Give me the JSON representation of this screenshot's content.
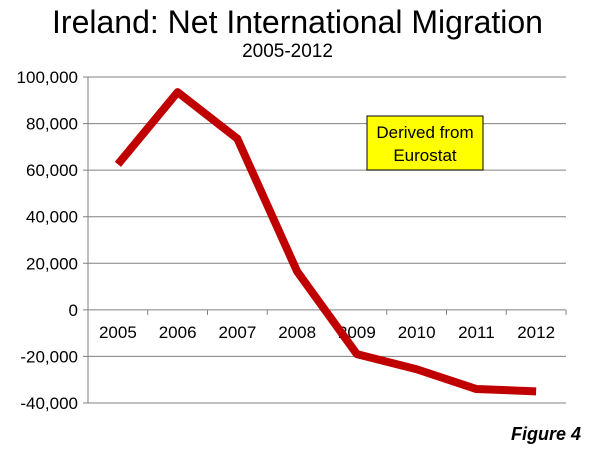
{
  "title": "Ireland: Net International Migration",
  "subtitle": "2005-2012",
  "figure_label": "Figure 4",
  "annotation": {
    "lines": [
      "Derived from",
      "Eurostat"
    ],
    "background": "#ffff00"
  },
  "colors": {
    "series": "#c00000",
    "grid": "#808080"
  },
  "chart_data": {
    "type": "line",
    "title": "Ireland: Net International Migration",
    "subtitle": "2005-2012",
    "categories": [
      "2005",
      "2006",
      "2007",
      "2008",
      "2009",
      "2010",
      "2011",
      "2012"
    ],
    "series": [
      {
        "values": [
          62500,
          93500,
          73500,
          16500,
          -19000,
          -25500,
          -34000,
          -35000
        ]
      }
    ],
    "ylim": [
      -40000,
      100000
    ],
    "yticks": [
      -40000,
      -20000,
      0,
      20000,
      40000,
      60000,
      80000,
      100000
    ],
    "ytick_labels": [
      "-40,000",
      "-20,000",
      "0",
      "20,000",
      "40,000",
      "60,000",
      "80,000",
      "100,000"
    ],
    "grid": "horizontal",
    "legend": "none"
  }
}
